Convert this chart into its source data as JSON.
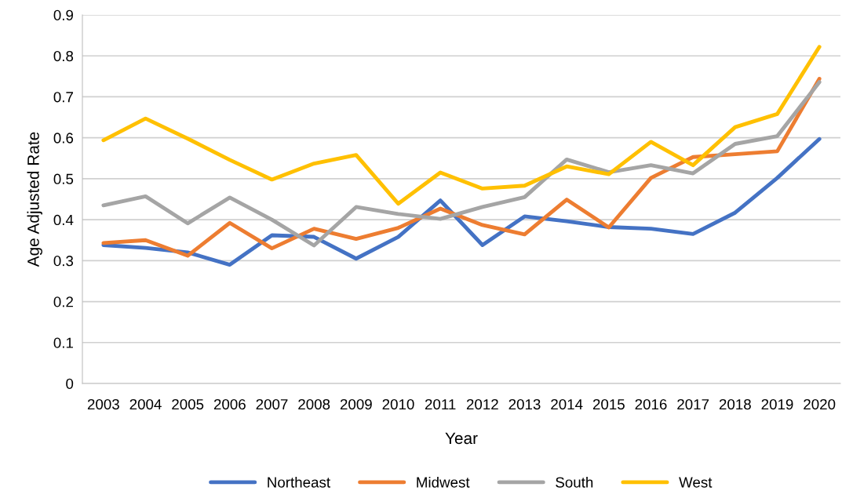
{
  "chart_data": {
    "type": "line",
    "xlabel": "Year",
    "ylabel": "Age Adjusted Rate",
    "categories": [
      "2003",
      "2004",
      "2005",
      "2006",
      "2007",
      "2008",
      "2009",
      "2010",
      "2011",
      "2012",
      "2013",
      "2014",
      "2015",
      "2016",
      "2017",
      "2018",
      "2019",
      "2020"
    ],
    "series": [
      {
        "name": "Northeast",
        "color": "#4472c4",
        "values": [
          0.338,
          0.331,
          0.32,
          0.29,
          0.362,
          0.358,
          0.305,
          0.358,
          0.447,
          0.338,
          0.408,
          0.396,
          0.382,
          0.378,
          0.365,
          0.417,
          0.502,
          0.597
        ]
      },
      {
        "name": "Midwest",
        "color": "#ed7d31",
        "values": [
          0.343,
          0.35,
          0.312,
          0.392,
          0.33,
          0.378,
          0.353,
          0.38,
          0.427,
          0.387,
          0.364,
          0.449,
          0.381,
          0.502,
          0.553,
          0.56,
          0.567,
          0.744
        ]
      },
      {
        "name": "South",
        "color": "#a5a5a5",
        "values": [
          0.435,
          0.457,
          0.391,
          0.454,
          0.4,
          0.337,
          0.431,
          0.414,
          0.402,
          0.431,
          0.455,
          0.547,
          0.516,
          0.533,
          0.513,
          0.585,
          0.604,
          0.736
        ]
      },
      {
        "name": "West",
        "color": "#ffc000",
        "values": [
          0.594,
          0.647,
          0.598,
          0.546,
          0.498,
          0.537,
          0.558,
          0.439,
          0.515,
          0.476,
          0.483,
          0.53,
          0.511,
          0.59,
          0.533,
          0.626,
          0.658,
          0.822
        ]
      }
    ],
    "ylim": [
      0,
      0.9
    ],
    "yticks": [
      0,
      0.1,
      0.2,
      0.3,
      0.4,
      0.5,
      0.6,
      0.7,
      0.8,
      0.9
    ],
    "grid": "y",
    "legend": "bottom",
    "marker": "none",
    "line_style": "solid"
  }
}
